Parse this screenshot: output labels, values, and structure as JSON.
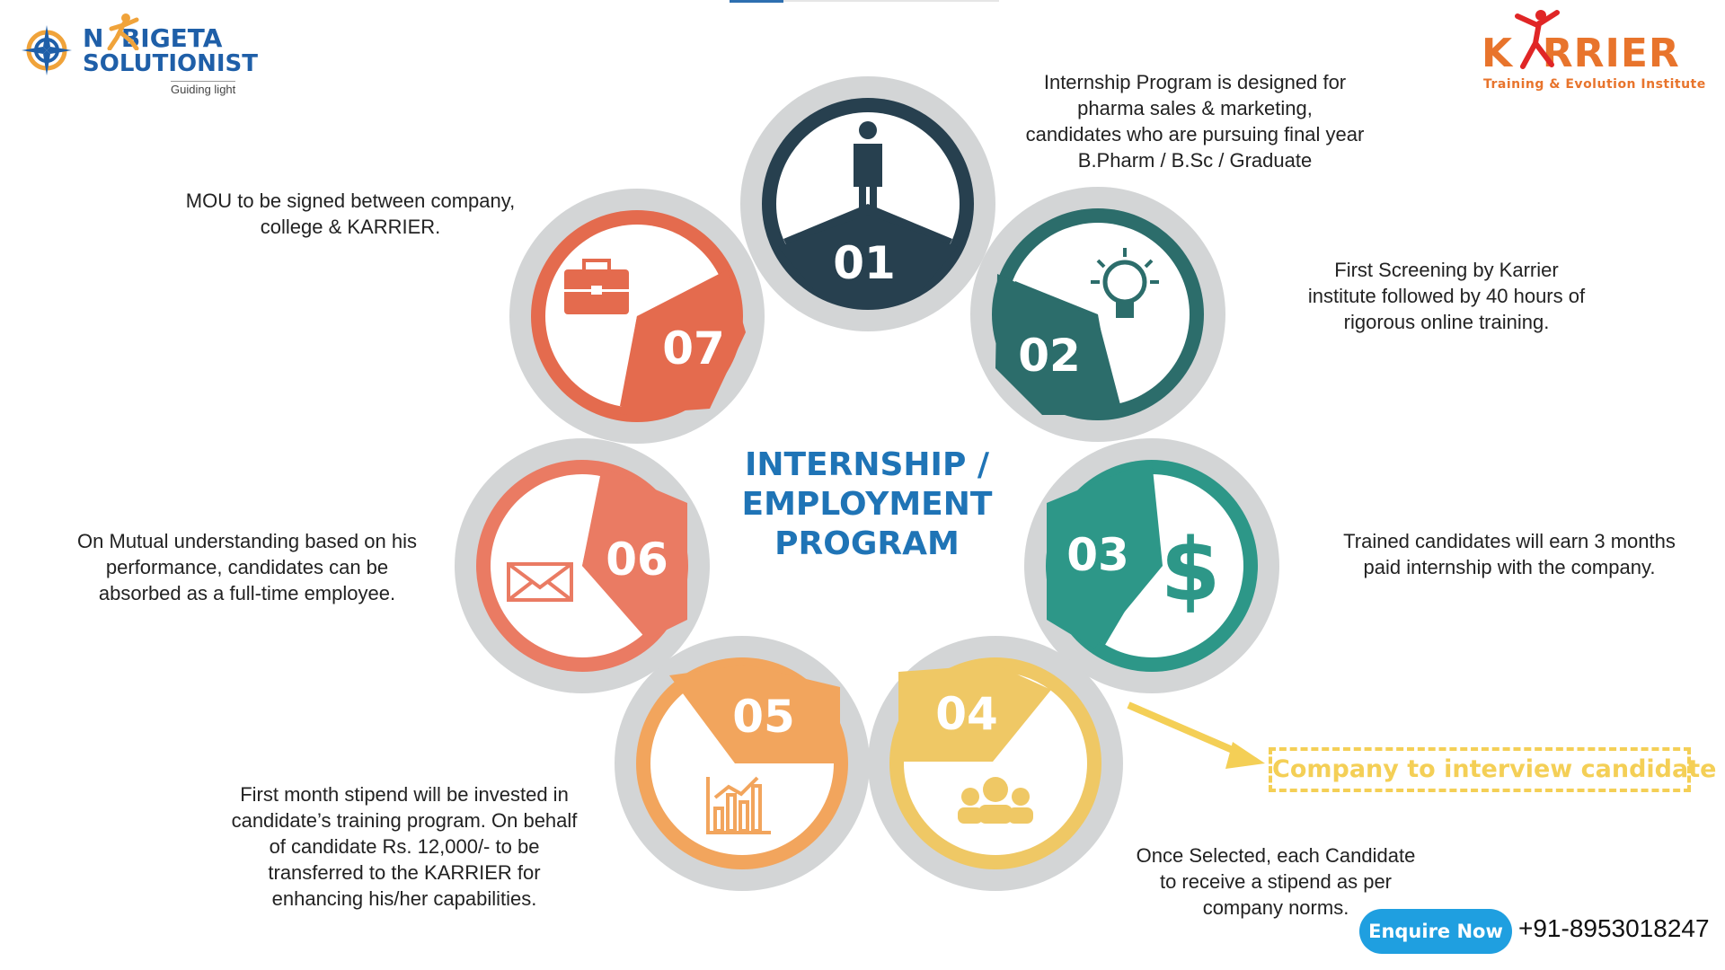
{
  "brand_left": {
    "name_line1": "N  BIGETA",
    "name_line2": "SOLUTIONIST",
    "tagline": "Guiding light"
  },
  "brand_right": {
    "name": "K  RRIER",
    "tagline": "Training & Evolution Institute"
  },
  "center_title": [
    "INTERNSHIP /",
    "EMPLOYMENT",
    "PROGRAM"
  ],
  "steps": [
    {
      "number": "01",
      "icon": "businessman-icon",
      "color": "#27404f",
      "description": [
        "Internship Program is designed for",
        "pharma sales & marketing,",
        "candidates who are pursuing final year",
        "B.Pharm / B.Sc / Graduate"
      ]
    },
    {
      "number": "02",
      "icon": "lightbulb-icon",
      "color": "#2c6d6b",
      "description": [
        "First Screening by Karrier",
        "institute followed by 40 hours of",
        "rigorous online training."
      ]
    },
    {
      "number": "03",
      "icon": "dollar-icon",
      "color": "#2d9788",
      "description": [
        "Trained candidates will earn 3 months",
        "paid internship with the company."
      ]
    },
    {
      "number": "04",
      "icon": "group-icon",
      "color": "#efc865",
      "description": [
        "Once Selected, each Candidate",
        "to receive a stipend as per",
        "company norms."
      ]
    },
    {
      "number": "05",
      "icon": "bar-chart-icon",
      "color": "#f2a55d",
      "description": [
        "First month stipend will be invested in",
        "candidate’s training program. On behalf",
        "of candidate Rs. 12,000/- to be",
        "transferred to the KARRIER for",
        "enhancing his/her capabilities."
      ]
    },
    {
      "number": "06",
      "icon": "envelope-icon",
      "color": "#ea7b63",
      "description": [
        "On Mutual understanding based on his",
        "performance, candidates can be",
        "absorbed as a full-time employee."
      ]
    },
    {
      "number": "07",
      "icon": "briefcase-icon",
      "color": "#e46b4e",
      "description": [
        "MOU to be signed between company,",
        "college & KARRIER."
      ]
    }
  ],
  "callout": "Company to interview candidate",
  "enquire_button": "Enquire Now",
  "phone": "+91-8953018247",
  "colors": {
    "title_blue": "#1f74b6",
    "callout_yellow": "#f4cf56",
    "enquire_blue": "#1f9fe0",
    "karrier_orange": "#e8742c",
    "ring_gray": "#d3d5d6"
  }
}
